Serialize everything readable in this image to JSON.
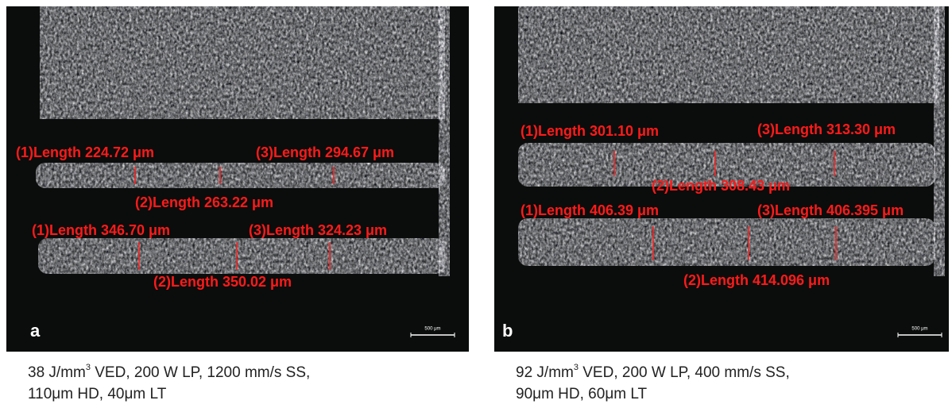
{
  "panels": [
    {
      "letter": "a",
      "scale_bar": "500 μm",
      "annotations": [
        "(1)Length 224.72 μm",
        "(3)Length 294.67 μm",
        "(2)Length 263.22 μm",
        "(1)Length 346.70 μm",
        "(3)Length 324.23 μm",
        "(2)Length 350.02 μm"
      ],
      "caption": {
        "line1": {
          "before": "38 J/mm",
          "sup": "3",
          "after": " VED, 200 W LP, 1200 mm/s SS,"
        },
        "line2": "110μm HD, 40μm LT"
      }
    },
    {
      "letter": "b",
      "scale_bar": "500 μm",
      "annotations": [
        "(1)Length 301.10 μm",
        "(3)Length 313.30 μm",
        "(2)Length 308.43 μm",
        "(1)Length 406.39 μm",
        "(3)Length 406.395 μm",
        "(2)Length 414.096 μm"
      ],
      "caption": {
        "line1": {
          "before": "92 J/mm",
          "sup": "3",
          "after": " VED, 200 W LP, 400 mm/s SS,"
        },
        "line2": "90μm HD, 60μm LT"
      }
    }
  ]
}
